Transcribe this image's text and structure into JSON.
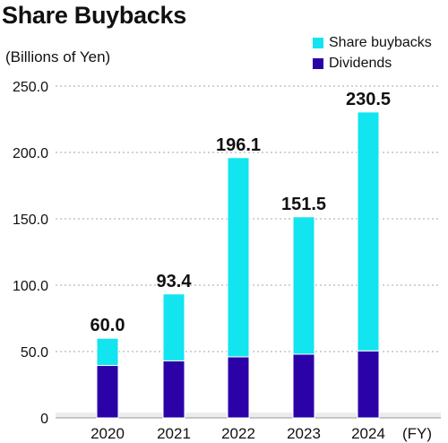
{
  "chart_data": {
    "type": "bar",
    "stacked": true,
    "title": "Share Buybacks",
    "ylabel": "(Billions of Yen)",
    "xlabel": "(FY)",
    "categories": [
      "2020",
      "2021",
      "2022",
      "2023",
      "2024"
    ],
    "series": [
      {
        "name": "Dividends",
        "color": "#2a02a8",
        "values": [
          39.5,
          43.0,
          46.0,
          48.0,
          50.5
        ]
      },
      {
        "name": "Share buybacks",
        "color": "#12e4f0",
        "values": [
          20.5,
          50.4,
          150.1,
          103.5,
          180.0
        ]
      }
    ],
    "totals": [
      "60.0",
      "93.4",
      "196.1",
      "151.5",
      "230.5"
    ],
    "ylim": [
      0,
      250
    ],
    "yticks": [
      "0",
      "50.0",
      "100.0",
      "150.0",
      "200.0",
      "250.0"
    ],
    "grid": "horizontal dotted",
    "legend": "top-right"
  }
}
